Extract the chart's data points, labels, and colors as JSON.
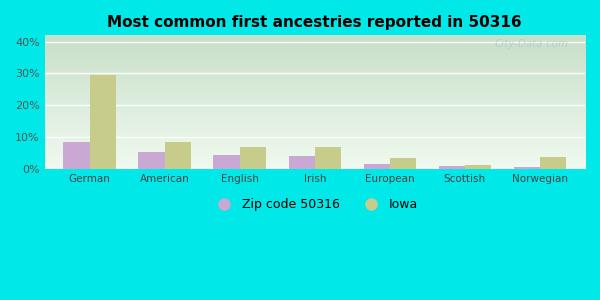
{
  "title": "Most common first ancestries reported in 50316",
  "categories": [
    "German",
    "American",
    "English",
    "Irish",
    "European",
    "Scottish",
    "Norwegian"
  ],
  "zip_values": [
    8.5,
    5.2,
    4.5,
    4.0,
    1.4,
    0.8,
    0.7
  ],
  "iowa_values": [
    29.5,
    8.5,
    7.0,
    6.8,
    3.5,
    1.3,
    3.8
  ],
  "zip_color": "#c9a8d4",
  "iowa_color": "#c8cc8a",
  "background_outer": "#00e8e8",
  "background_grad_top": "#c8dfc8",
  "background_grad_bottom": "#f0faf0",
  "yticks": [
    0,
    10,
    20,
    30,
    40
  ],
  "ytick_labels": [
    "0%",
    "10%",
    "20%",
    "30%",
    "40%"
  ],
  "ylim": [
    0,
    42
  ],
  "bar_width": 0.35,
  "legend_zip_label": "Zip code 50316",
  "legend_iowa_label": "Iowa",
  "watermark": "City-Data.com"
}
